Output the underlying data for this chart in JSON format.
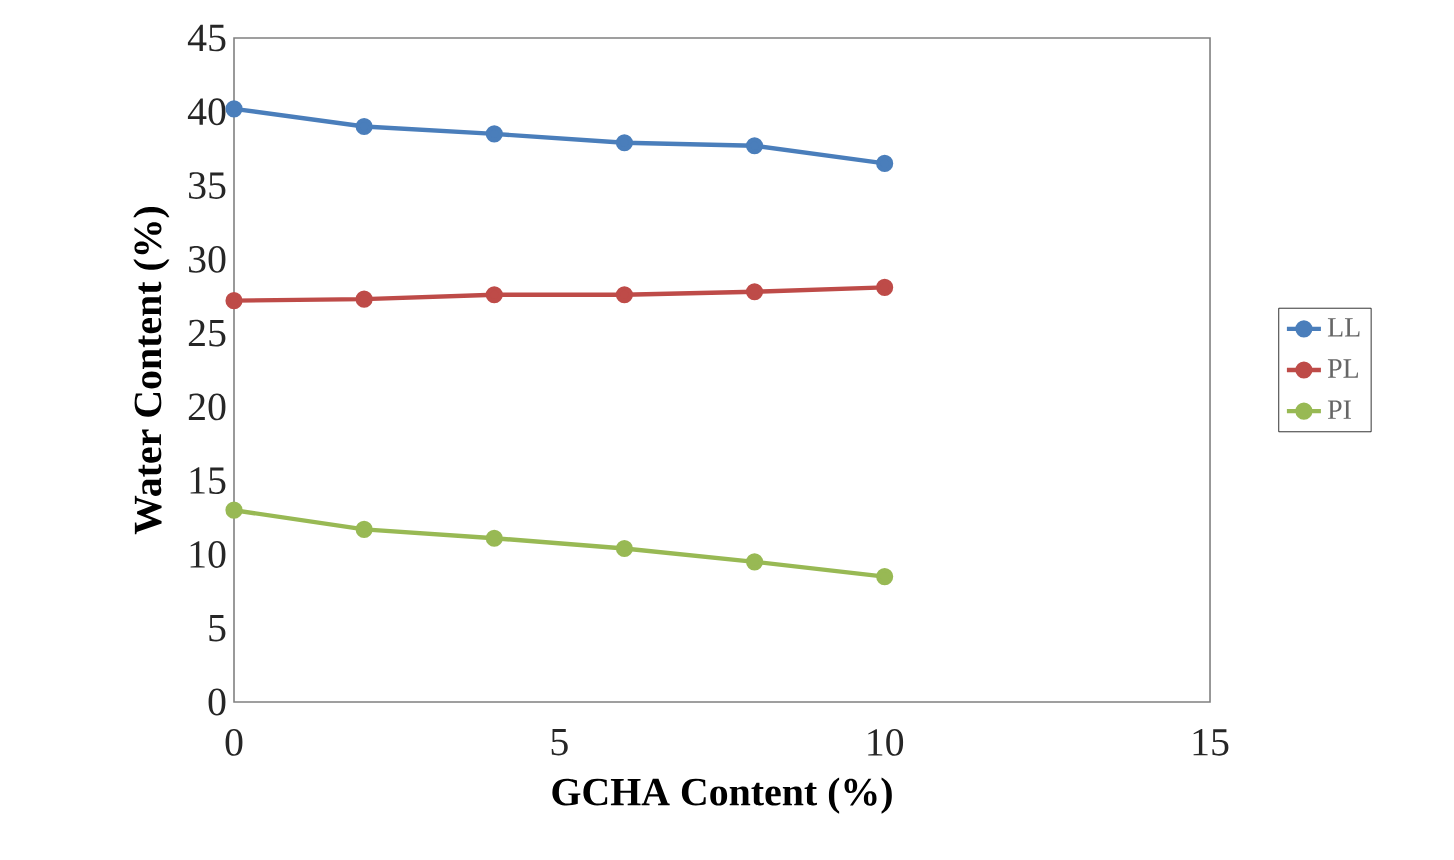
{
  "chart_data": {
    "type": "line",
    "xlabel": "GCHA Content (%)",
    "ylabel": "Water Content (%)",
    "x": [
      0,
      2,
      4,
      6,
      8,
      10
    ],
    "series": [
      {
        "name": "LL",
        "color": "#4a7ebb",
        "values": [
          40.2,
          39.0,
          38.5,
          37.9,
          37.7,
          36.5
        ]
      },
      {
        "name": "PL",
        "color": "#be4b48",
        "values": [
          27.2,
          27.3,
          27.6,
          27.6,
          27.8,
          28.1
        ]
      },
      {
        "name": "PI",
        "color": "#98b954",
        "values": [
          13.0,
          11.7,
          11.1,
          10.4,
          9.5,
          8.5
        ]
      }
    ],
    "xlim": [
      0,
      15
    ],
    "xticks": [
      0,
      5,
      10,
      15
    ],
    "ylim": [
      0,
      45
    ],
    "yticks": [
      0,
      5,
      10,
      15,
      20,
      25,
      30,
      35,
      40,
      45
    ],
    "marker": "circle",
    "line_style": "solid",
    "legend": "right",
    "grid": false
  }
}
